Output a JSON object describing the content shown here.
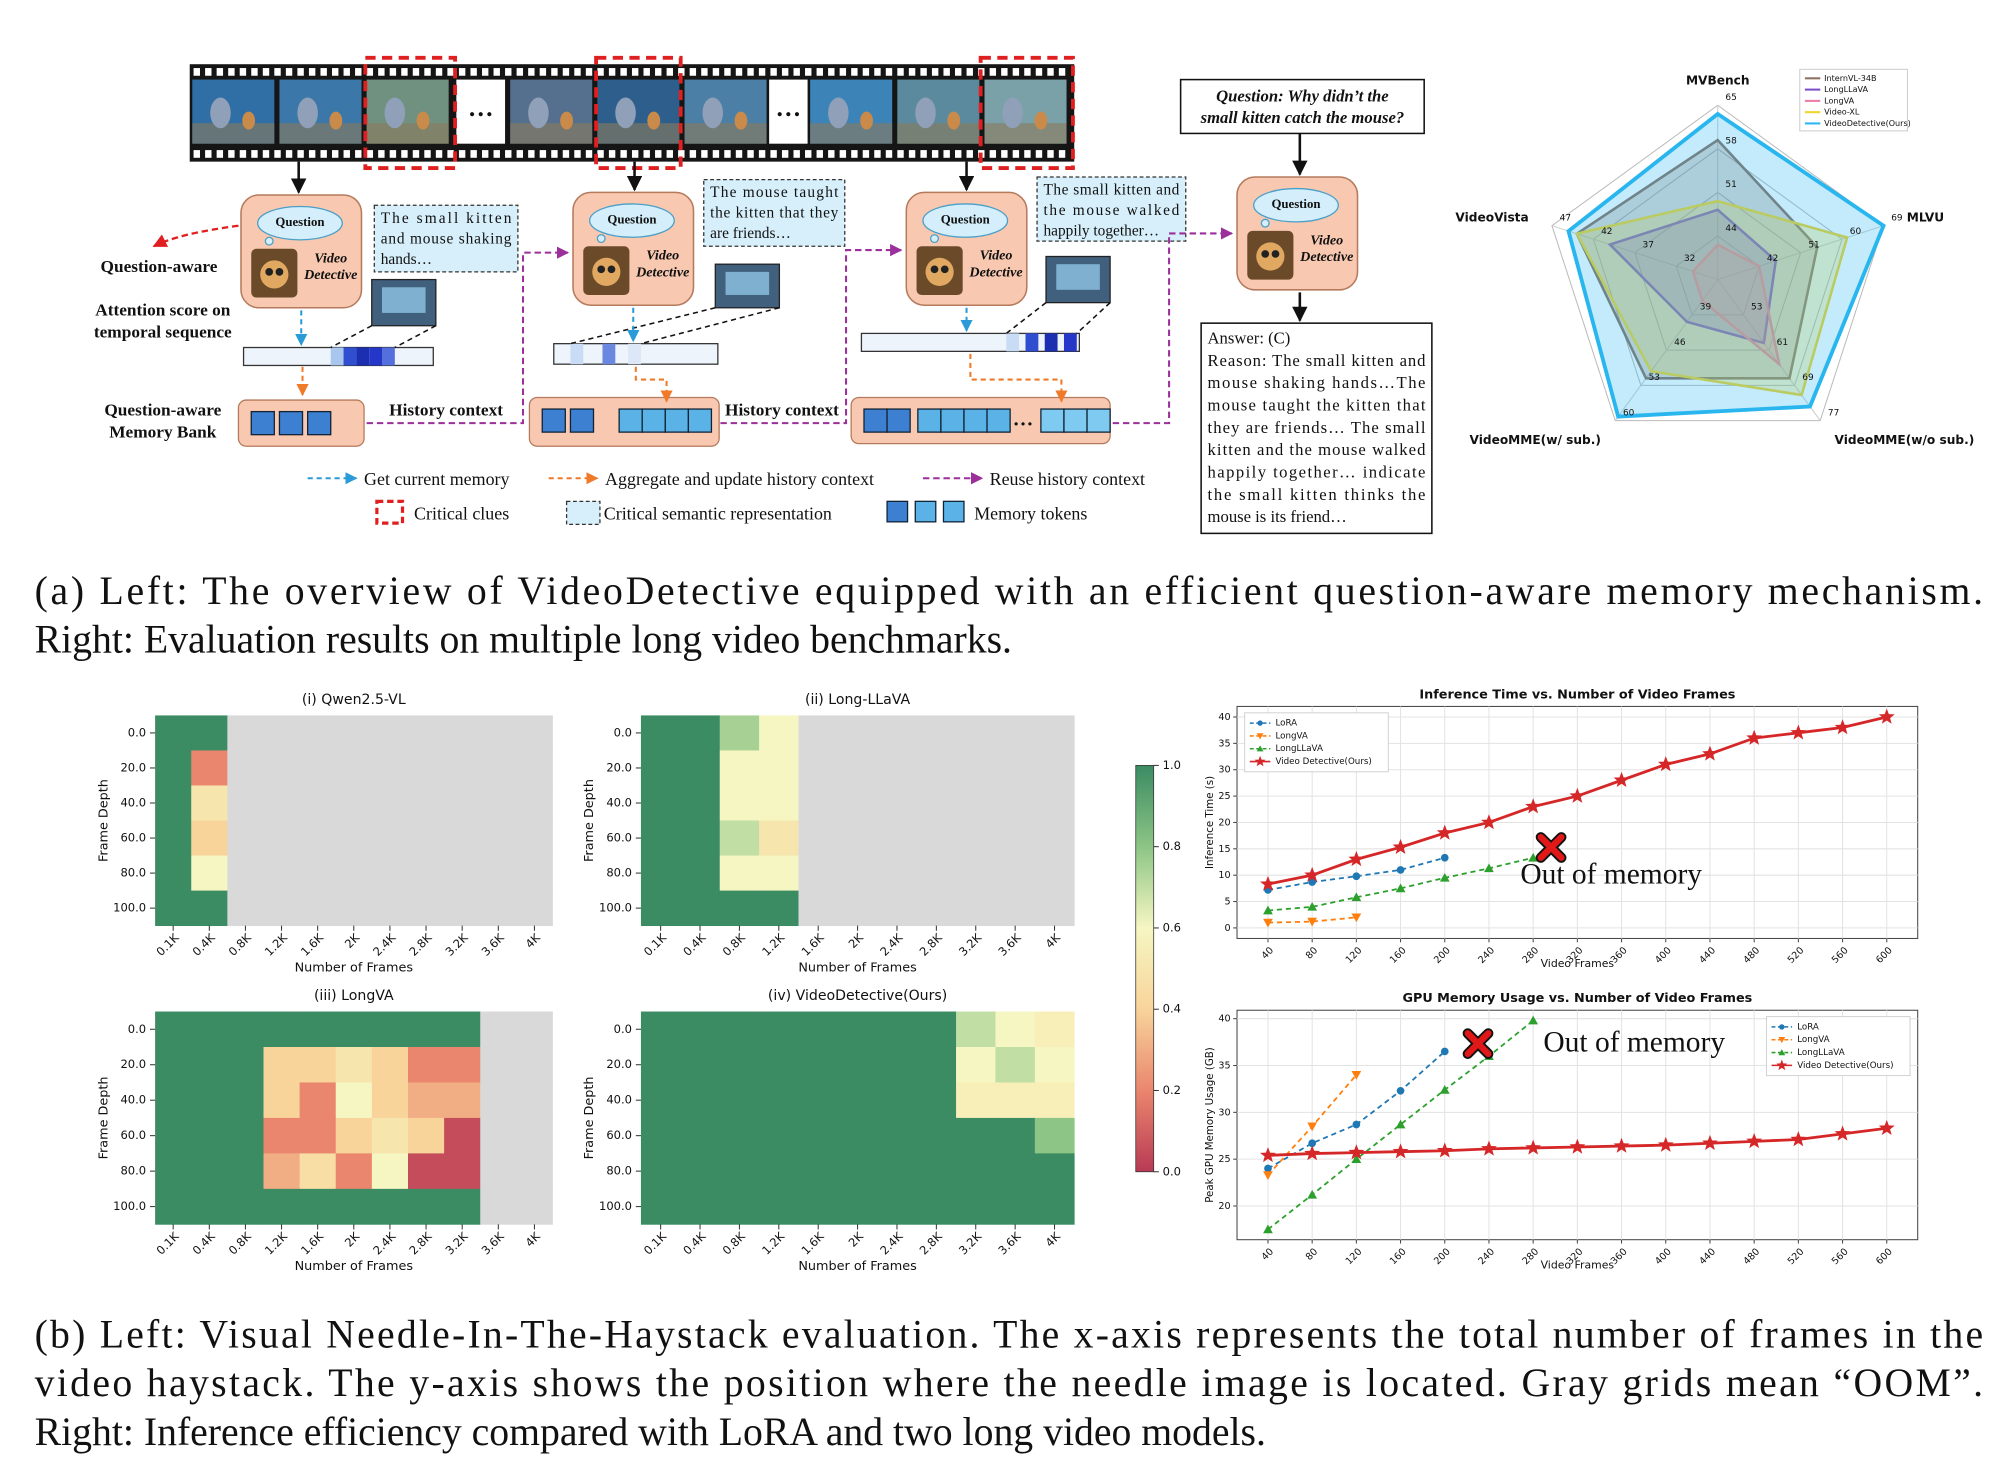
{
  "diagram": {
    "film_ellipses": [
      "…",
      "…"
    ],
    "left_labels": {
      "question_aware": "Question-aware",
      "attention": [
        "Attention score on",
        "temporal sequence"
      ],
      "memory_bank": [
        "Question-aware",
        "Memory Bank"
      ]
    },
    "steps": [
      {
        "cloud": "Question",
        "agent": [
          "Video",
          "Detective"
        ],
        "caption": [
          "The small kitten",
          "and mouse shaking",
          "hands…"
        ]
      },
      {
        "cloud": "Question",
        "agent": [
          "Video",
          "Detective"
        ],
        "caption": [
          "The mouse taught",
          "the kitten that they",
          "are friends…"
        ]
      },
      {
        "cloud": "Question",
        "agent": [
          "Video",
          "Detective"
        ],
        "caption": [
          "The small kitten and",
          "the mouse walked",
          "happily together…"
        ]
      },
      {
        "cloud": "Question",
        "agent": [
          "Video",
          "Detective"
        ]
      }
    ],
    "history_context": [
      "History context",
      "History context"
    ],
    "memory_ellipsis": "…",
    "question": [
      "Question: Why didn’t the",
      "small kitten catch the mouse?"
    ],
    "answer": [
      "Answer: (C)",
      "Reason: The small kitten and",
      "mouse shaking hands…The",
      "mouse taught the kitten that",
      "they are friends… The small",
      "kitten and the mouse walked",
      "happily together… indicate",
      "the small kitten thinks the",
      "mouse is its friend…"
    ],
    "legend": {
      "get_memory": "Get current memory",
      "aggregate": "Aggregate and update history context",
      "reuse": "Reuse history context",
      "critical_clues": "Critical clues",
      "critical_semantic": "Critical semantic representation",
      "memory_tokens": "Memory tokens"
    }
  },
  "chart_data": [
    {
      "type": "radar",
      "axes": [
        {
          "name": "MVBench",
          "lim": [
            37,
            65
          ],
          "ticks": [
            44,
            51,
            58,
            65
          ]
        },
        {
          "name": "MLVU",
          "lim": [
            33,
            69
          ],
          "ticks": [
            42,
            51,
            60,
            69
          ]
        },
        {
          "name": "VideoMME(w/o sub.)",
          "lim": [
            45,
            77
          ],
          "ticks": [
            53,
            61,
            69,
            77
          ]
        },
        {
          "name": "VideoMME(w/ sub.)",
          "lim": [
            32,
            60
          ],
          "ticks": [
            39,
            46,
            53,
            60
          ]
        },
        {
          "name": "VideoVista",
          "lim": [
            27,
            47
          ],
          "ticks": [
            32,
            37,
            42,
            47
          ]
        }
      ],
      "series": [
        {
          "name": "InternVL-34B",
          "color": "#8b7061",
          "values": [
            59.4,
            54.6,
            67.4,
            51.6,
            44.0
          ]
        },
        {
          "name": "LongLLaVA",
          "color": "#7b4fc9",
          "values": [
            48.2,
            45.6,
            59.4,
            40.4,
            40.0
          ]
        },
        {
          "name": "LongVA",
          "color": "#ee7aa6",
          "values": [
            42.6,
            42.0,
            64.2,
            36.2,
            30.0
          ]
        },
        {
          "name": "Video-XL",
          "color": "#f2d32a",
          "values": [
            49.6,
            61.1,
            71.2,
            50.2,
            44.0
          ]
        },
        {
          "name": "VideoDetective(Ours)",
          "color": "#29b6ef",
          "values": [
            63.6,
            69.0,
            73.8,
            59.2,
            45.0
          ]
        }
      ],
      "legend": "upper right"
    },
    {
      "type": "heatmap",
      "title": "(i) Qwen2.5-VL",
      "xlabel": "Number of Frames",
      "ylabel": "Frame Depth",
      "categories": [
        "0.1K",
        "0.4K",
        "0.8K",
        "1.2K",
        "1.6K",
        "2K",
        "2.4K",
        "2.8K",
        "3.2K",
        "3.6K",
        "4K"
      ],
      "rows": [
        "0.0",
        "20.0",
        "40.0",
        "60.0",
        "80.0",
        "100.0"
      ],
      "values": [
        [
          1,
          1,
          null,
          null,
          null,
          null,
          null,
          null,
          null,
          null,
          null
        ],
        [
          1,
          0.2,
          null,
          null,
          null,
          null,
          null,
          null,
          null,
          null,
          null
        ],
        [
          1,
          0.5,
          null,
          null,
          null,
          null,
          null,
          null,
          null,
          null,
          null
        ],
        [
          1,
          0.4,
          null,
          null,
          null,
          null,
          null,
          null,
          null,
          null,
          null
        ],
        [
          1,
          0.6,
          null,
          null,
          null,
          null,
          null,
          null,
          null,
          null,
          null
        ],
        [
          1,
          1,
          null,
          null,
          null,
          null,
          null,
          null,
          null,
          null,
          null
        ]
      ]
    },
    {
      "type": "heatmap",
      "title": "(ii) Long-LLaVA",
      "xlabel": "Number of Frames",
      "ylabel": "Frame Depth",
      "categories": [
        "0.1K",
        "0.4K",
        "0.8K",
        "1.2K",
        "1.6K",
        "2K",
        "2.4K",
        "2.8K",
        "3.2K",
        "3.6K",
        "4K"
      ],
      "rows": [
        "0.0",
        "20.0",
        "40.0",
        "60.0",
        "80.0",
        "100.0"
      ],
      "values": [
        [
          1,
          1,
          0.75,
          0.6,
          null,
          null,
          null,
          null,
          null,
          null,
          null
        ],
        [
          1,
          1,
          0.6,
          0.6,
          null,
          null,
          null,
          null,
          null,
          null,
          null
        ],
        [
          1,
          1,
          0.6,
          0.6,
          null,
          null,
          null,
          null,
          null,
          null,
          null
        ],
        [
          1,
          1,
          0.7,
          0.5,
          null,
          null,
          null,
          null,
          null,
          null,
          null
        ],
        [
          1,
          1,
          0.6,
          0.6,
          null,
          null,
          null,
          null,
          null,
          null,
          null
        ],
        [
          1,
          1,
          1,
          1,
          null,
          null,
          null,
          null,
          null,
          null,
          null
        ]
      ]
    },
    {
      "type": "heatmap",
      "title": "(iii) LongVA",
      "xlabel": "Number of Frames",
      "ylabel": "Frame Depth",
      "categories": [
        "0.1K",
        "0.4K",
        "0.8K",
        "1.2K",
        "1.6K",
        "2K",
        "2.4K",
        "2.8K",
        "3.2K",
        "3.6K",
        "4K"
      ],
      "rows": [
        "0.0",
        "20.0",
        "40.0",
        "60.0",
        "80.0",
        "100.0"
      ],
      "values": [
        [
          1,
          1,
          1,
          1,
          1,
          1,
          1,
          1,
          1,
          null,
          null
        ],
        [
          1,
          1,
          1,
          0.4,
          0.4,
          0.5,
          0.4,
          0.2,
          0.2,
          null,
          null
        ],
        [
          1,
          1,
          1,
          0.4,
          0.2,
          0.6,
          0.4,
          0.3,
          0.3,
          null,
          null
        ],
        [
          1,
          1,
          1,
          0.2,
          0.2,
          0.4,
          0.5,
          0.4,
          0.05,
          null,
          null
        ],
        [
          1,
          1,
          1,
          0.3,
          0.45,
          0.2,
          0.6,
          0.05,
          0.05,
          null,
          null
        ],
        [
          1,
          1,
          1,
          1,
          1,
          1,
          1,
          1,
          1,
          null,
          null
        ]
      ]
    },
    {
      "type": "heatmap",
      "title": "(iv) VideoDetective(Ours)",
      "xlabel": "Number of Frames",
      "ylabel": "Frame Depth",
      "categories": [
        "0.1K",
        "0.4K",
        "0.8K",
        "1.2K",
        "1.6K",
        "2K",
        "2.4K",
        "2.8K",
        "3.2K",
        "3.6K",
        "4K"
      ],
      "rows": [
        "0.0",
        "20.0",
        "40.0",
        "60.0",
        "80.0",
        "100.0"
      ],
      "values": [
        [
          1,
          1,
          1,
          1,
          1,
          1,
          1,
          1,
          0.7,
          0.6,
          0.55
        ],
        [
          1,
          1,
          1,
          1,
          1,
          1,
          1,
          1,
          0.6,
          0.7,
          0.6
        ],
        [
          1,
          1,
          1,
          1,
          1,
          1,
          1,
          1,
          0.55,
          0.55,
          0.55
        ],
        [
          1,
          1,
          1,
          1,
          1,
          1,
          1,
          1,
          1,
          1,
          0.8
        ],
        [
          1,
          1,
          1,
          1,
          1,
          1,
          1,
          1,
          1,
          1,
          1
        ],
        [
          1,
          1,
          1,
          1,
          1,
          1,
          1,
          1,
          1,
          1,
          1
        ]
      ]
    },
    {
      "type": "line",
      "title": "Inference Time vs. Number of Video Frames",
      "xlabel": "Video Frames",
      "ylabel": "Inference Time (s)",
      "x": [
        40,
        80,
        120,
        160,
        200,
        240,
        280,
        320,
        360,
        400,
        440,
        480,
        520,
        560,
        600
      ],
      "xlim": [
        12,
        628
      ],
      "xticks": [
        40,
        80,
        120,
        160,
        200,
        240,
        280,
        320,
        360,
        400,
        440,
        480,
        520,
        560,
        600
      ],
      "ylim": [
        -2,
        42
      ],
      "yticks": [
        0,
        5,
        10,
        15,
        20,
        25,
        30,
        35,
        40
      ],
      "grid": true,
      "legend": "upper left",
      "annotation": "Out of memory",
      "series": [
        {
          "name": "LoRA",
          "color": "#1f77b4",
          "marker": "o",
          "linestyle": "dashed",
          "values": [
            7.2,
            8.7,
            9.8,
            11,
            13.3,
            null,
            null,
            null,
            null,
            null,
            null,
            null,
            null,
            null,
            null
          ]
        },
        {
          "name": "LongVA",
          "color": "#ff7f0e",
          "marker": "v",
          "linestyle": "dashed",
          "values": [
            1,
            1.2,
            2,
            null,
            null,
            null,
            null,
            null,
            null,
            null,
            null,
            null,
            null,
            null,
            null
          ]
        },
        {
          "name": "LongLLaVA",
          "color": "#2ca02c",
          "marker": "^",
          "linestyle": "dashed",
          "values": [
            3.3,
            4,
            5.8,
            7.5,
            9.5,
            11.3,
            13.3,
            null,
            null,
            null,
            null,
            null,
            null,
            null,
            null
          ]
        },
        {
          "name": "Video Detective(Ours)",
          "color": "#d62728",
          "marker": "*",
          "linestyle": "solid",
          "values": [
            8.3,
            10,
            13,
            15.3,
            18,
            20,
            23,
            25,
            28,
            31,
            33,
            36,
            37,
            38,
            40
          ]
        }
      ]
    },
    {
      "type": "line",
      "title": "GPU Memory Usage vs. Number of Video Frames",
      "xlabel": "Video Frames",
      "ylabel": "Peak GPU Memory Usage (GB)",
      "x": [
        40,
        80,
        120,
        160,
        200,
        240,
        280,
        320,
        360,
        400,
        440,
        480,
        520,
        560,
        600
      ],
      "xlim": [
        12,
        628
      ],
      "xticks": [
        40,
        80,
        120,
        160,
        200,
        240,
        280,
        320,
        360,
        400,
        440,
        480,
        520,
        560,
        600
      ],
      "ylim": [
        16.4,
        40.9
      ],
      "yticks": [
        20,
        25,
        30,
        35,
        40
      ],
      "grid": true,
      "legend": "upper right",
      "annotation": "Out of memory",
      "series": [
        {
          "name": "LoRA",
          "color": "#1f77b4",
          "marker": "o",
          "linestyle": "dashed",
          "values": [
            24,
            26.7,
            28.7,
            32.3,
            36.5,
            null,
            null,
            null,
            null,
            null,
            null,
            null,
            null,
            null,
            null
          ]
        },
        {
          "name": "LongVA",
          "color": "#ff7f0e",
          "marker": "v",
          "linestyle": "dashed",
          "values": [
            23.3,
            28.5,
            34,
            null,
            null,
            null,
            null,
            null,
            null,
            null,
            null,
            null,
            null,
            null,
            null
          ]
        },
        {
          "name": "LongLLaVA",
          "color": "#2ca02c",
          "marker": "^",
          "linestyle": "dashed",
          "values": [
            17.5,
            21.2,
            25,
            28.7,
            32.4,
            36,
            39.8,
            null,
            null,
            null,
            null,
            null,
            null,
            null,
            null
          ]
        },
        {
          "name": "Video Detective(Ours)",
          "color": "#d62728",
          "marker": "*",
          "linestyle": "solid",
          "values": [
            25.4,
            25.6,
            25.7,
            25.8,
            25.9,
            26.1,
            26.2,
            26.3,
            26.4,
            26.5,
            26.7,
            26.9,
            27.1,
            27.7,
            28.3
          ]
        }
      ]
    }
  ],
  "colorbar": {
    "lim": [
      0,
      1
    ],
    "ticks": [
      {
        "value": 0,
        "label": "0.0"
      },
      {
        "value": 0.2,
        "label": "0.2"
      },
      {
        "value": 0.4,
        "label": "0.4"
      },
      {
        "value": 0.6,
        "label": "0.6"
      },
      {
        "value": 0.8,
        "label": "0.8"
      },
      {
        "value": 1,
        "label": "1.0"
      }
    ],
    "colors": [
      "#b83a54",
      "#ea866e",
      "#f8d49a",
      "#f6f6c2",
      "#8cc585",
      "#3b8b63"
    ],
    "missing_color": "#d9d9d9"
  },
  "captions": {
    "a": [
      "(a) Left: The overview of VideoDetective equipped with an efficient question-aware memory mechanism.",
      "Right: Evaluation results on multiple long video benchmarks."
    ],
    "b": [
      "(b) Left: Visual Needle-In-The-Haystack evaluation. The x-axis represents the total number of frames in the",
      "video haystack. The y-axis shows the position where the needle image is located. Gray grids mean “OOM”.",
      "Right: Inference efficiency compared with LoRA and two long video models."
    ]
  }
}
